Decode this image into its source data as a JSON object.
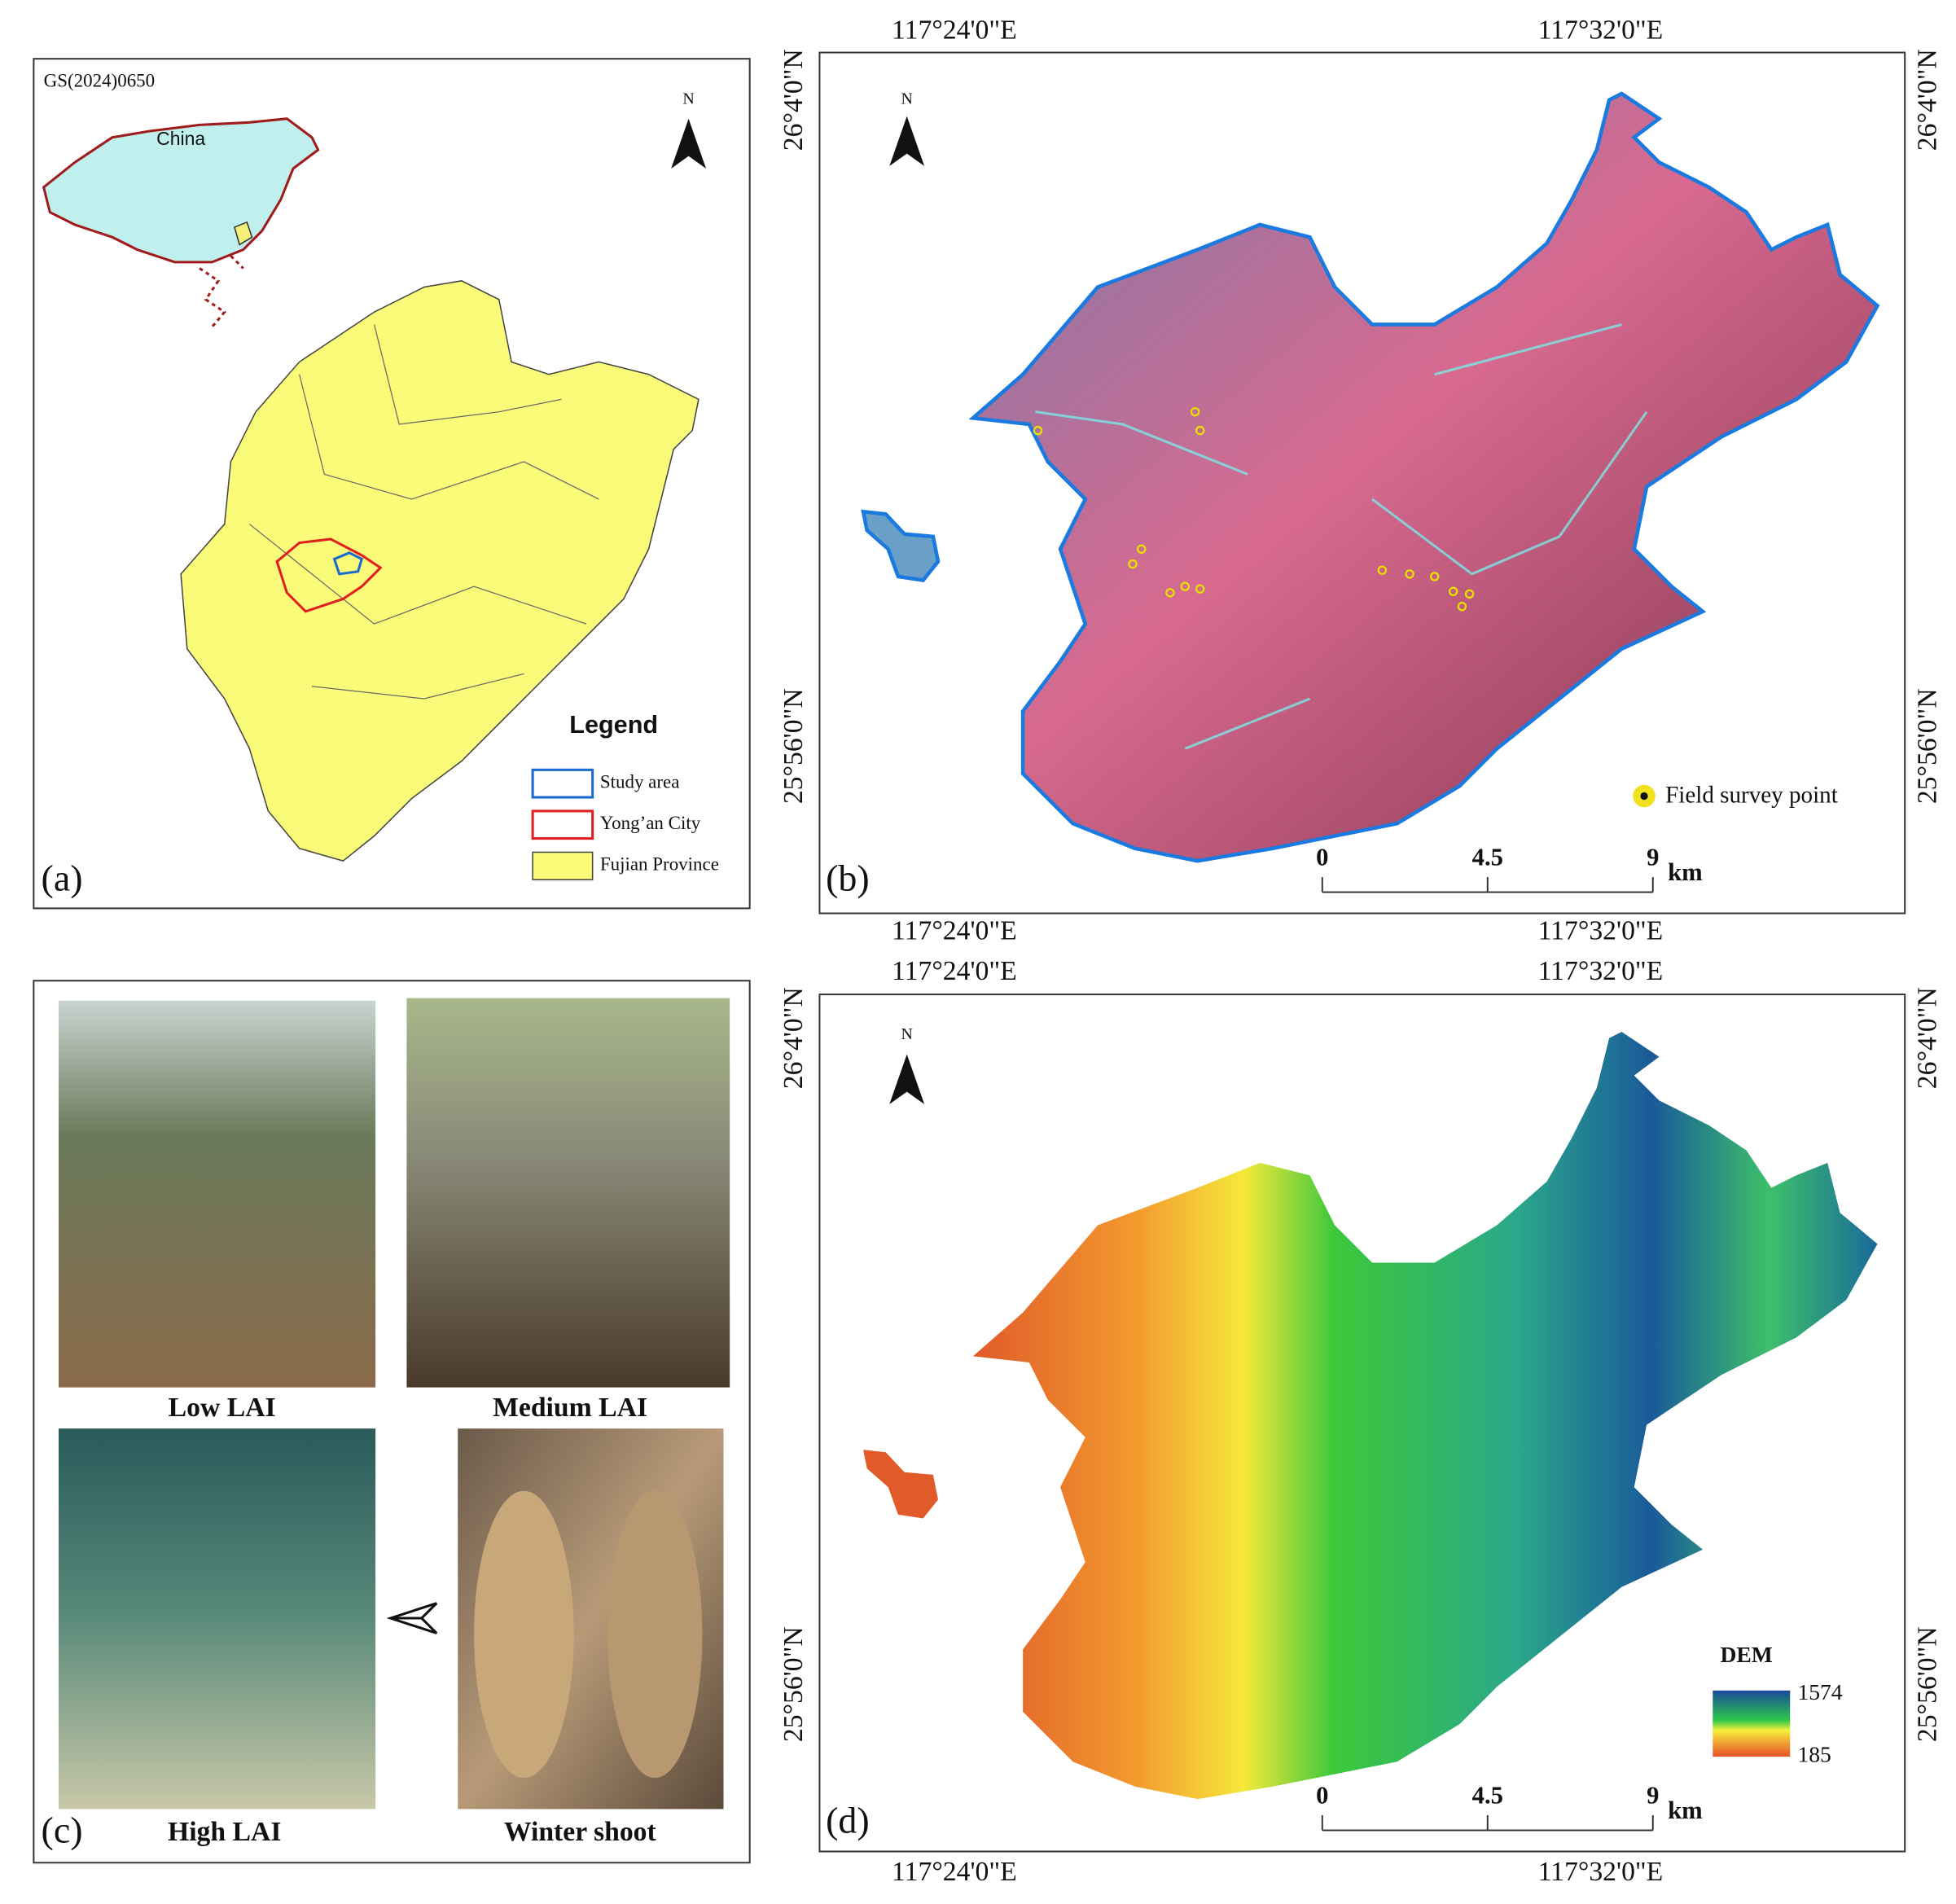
{
  "panel_a": {
    "label": "(a)",
    "code": "GS(2024)0650",
    "north": "N",
    "inset_label": "China",
    "legend": {
      "title": "Legend",
      "items": [
        "Study area",
        "Yong’an City",
        "Fujian Province"
      ]
    }
  },
  "panel_b": {
    "label": "(b)",
    "north": "N",
    "lon_labels": [
      "117°24'0\"E",
      "117°32'0\"E"
    ],
    "lat_labels": [
      "26°4'0\"N",
      "25°56'0\"N"
    ],
    "point_legend": "Field survey point",
    "scale_bar": {
      "ticks": [
        0,
        4.5,
        9
      ],
      "unit": "km"
    }
  },
  "panel_c": {
    "label": "(c)",
    "photos": [
      "Low LAI",
      "Medium LAI",
      "High LAI",
      "Winter shoot"
    ]
  },
  "panel_d": {
    "label": "(d)",
    "north": "N",
    "lon_labels": [
      "117°24'0\"E",
      "117°32'0\"E"
    ],
    "lat_labels": [
      "26°4'0\"N",
      "25°56'0\"N"
    ],
    "dem_legend": {
      "title": "DEM",
      "max": 1574,
      "min": 185
    },
    "scale_bar": {
      "ticks": [
        0,
        4.5,
        9
      ],
      "unit": "km"
    }
  }
}
